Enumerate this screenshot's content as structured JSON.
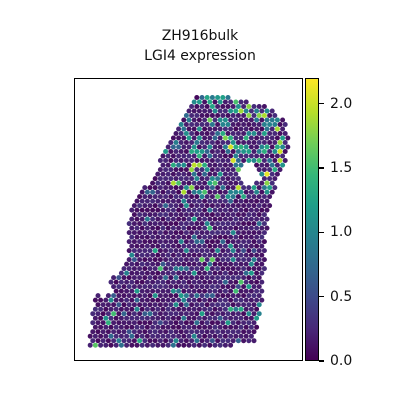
{
  "chart_data": {
    "type": "scatter",
    "title": "ZH916bulk",
    "subtitle": "LGI4 expression",
    "xlabel": "",
    "ylabel": "",
    "colorbar": {
      "colormap": "viridis",
      "range": [
        0.0,
        2.2
      ],
      "ticks": [
        0.0,
        0.5,
        1.0,
        1.5,
        2.0
      ],
      "tick_labels": [
        "0.0",
        "0.5",
        "1.0",
        "1.5",
        "2.0"
      ]
    },
    "grid": false,
    "legend": "none",
    "marker": "hexagonal spots",
    "highlight_spots": [
      {
        "value": 2.1
      },
      {
        "value": 2.0
      },
      {
        "value": 1.9
      },
      {
        "value": 1.8
      },
      {
        "value": 1.7
      },
      {
        "value": 1.6
      },
      {
        "value": 1.5
      },
      {
        "value": 1.4
      },
      {
        "value": 1.3
      },
      {
        "value": 1.2
      },
      {
        "value": 1.1
      },
      {
        "value": 1.0
      },
      {
        "value": 0.9
      },
      {
        "value": 0.8
      },
      {
        "value": 0.7
      }
    ]
  },
  "colors": {
    "viridis_low": "#440154",
    "viridis_high": "#fde725"
  }
}
